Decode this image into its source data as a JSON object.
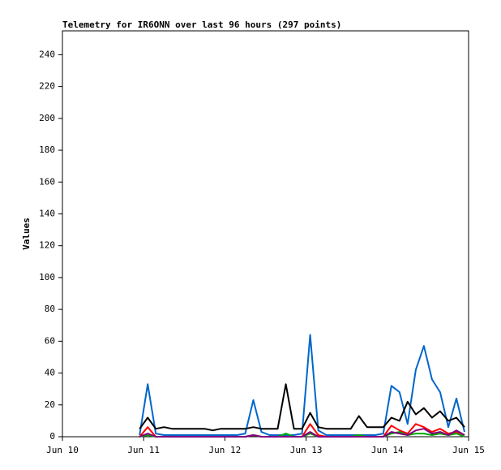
{
  "chart_data": {
    "type": "line",
    "title": "Telemetry for IR6ONN over last 96 hours (297 points)",
    "y_label": "Values",
    "x": [
      10.95,
      11.05,
      11.15,
      11.25,
      11.35,
      11.45,
      11.55,
      11.65,
      11.75,
      11.85,
      11.95,
      12.05,
      12.15,
      12.25,
      12.35,
      12.45,
      12.55,
      12.65,
      12.75,
      12.85,
      12.95,
      13.05,
      13.15,
      13.25,
      13.35,
      13.45,
      13.55,
      13.65,
      13.75,
      13.85,
      13.95,
      14.05,
      14.15,
      14.25,
      14.35,
      14.45,
      14.55,
      14.65,
      14.75,
      14.85,
      14.95
    ],
    "series": [
      {
        "color": "#0066cc",
        "values": [
          1,
          33,
          2,
          1,
          1,
          1,
          1,
          1,
          1,
          1,
          1,
          1,
          1,
          2,
          23,
          3,
          1,
          1,
          1,
          1,
          2,
          64,
          4,
          1,
          1,
          1,
          1,
          1,
          1,
          1,
          2,
          32,
          28,
          8,
          42,
          57,
          36,
          28,
          6,
          24,
          3
        ]
      },
      {
        "color": "#000000",
        "values": [
          5,
          12,
          5,
          6,
          5,
          5,
          5,
          5,
          5,
          4,
          5,
          5,
          5,
          5,
          6,
          5,
          5,
          5,
          33,
          5,
          5,
          15,
          6,
          5,
          5,
          5,
          5,
          13,
          6,
          6,
          6,
          12,
          10,
          22,
          14,
          18,
          12,
          16,
          10,
          12,
          6
        ]
      },
      {
        "color": "#ff0000",
        "values": [
          0,
          6,
          0,
          0,
          0,
          0,
          0,
          0,
          0,
          0,
          0,
          0,
          0,
          0,
          1,
          0,
          0,
          0,
          0,
          0,
          0,
          8,
          1,
          0,
          0,
          0,
          0,
          0,
          0,
          0,
          0,
          7,
          4,
          2,
          8,
          6,
          3,
          5,
          2,
          3,
          1
        ]
      },
      {
        "color": "#00aa00",
        "values": [
          0,
          1,
          0,
          0,
          0,
          0,
          0,
          0,
          0,
          0,
          0,
          0,
          0,
          0,
          1,
          0,
          0,
          0,
          2,
          0,
          0,
          2,
          0,
          0,
          0,
          0,
          0,
          1,
          0,
          0,
          0,
          2,
          3,
          1,
          2,
          2,
          1,
          2,
          1,
          2,
          0
        ]
      },
      {
        "color": "#800080",
        "values": [
          0,
          2,
          0,
          0,
          0,
          0,
          0,
          0,
          0,
          0,
          0,
          0,
          0,
          0,
          1,
          0,
          0,
          0,
          0,
          0,
          0,
          3,
          0,
          0,
          0,
          0,
          0,
          0,
          0,
          0,
          0,
          3,
          2,
          1,
          4,
          5,
          2,
          3,
          1,
          4,
          1
        ]
      }
    ],
    "xlim": [
      10,
      15
    ],
    "xticks": [
      {
        "value": 10,
        "label": "Jun 10"
      },
      {
        "value": 11,
        "label": "Jun 11"
      },
      {
        "value": 12,
        "label": "Jun 12"
      },
      {
        "value": 13,
        "label": "Jun 13"
      },
      {
        "value": 14,
        "label": "Jun 14"
      },
      {
        "value": 15,
        "label": "Jun 15"
      }
    ],
    "ylim": [
      0,
      255
    ],
    "yticks": [
      0,
      20,
      40,
      60,
      80,
      100,
      120,
      140,
      160,
      180,
      200,
      220,
      240
    ]
  }
}
